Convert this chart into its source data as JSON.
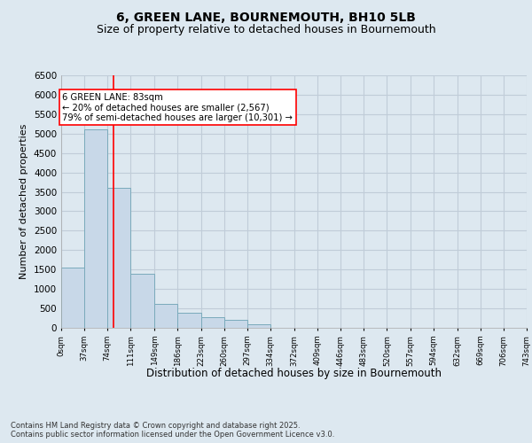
{
  "title1": "6, GREEN LANE, BOURNEMOUTH, BH10 5LB",
  "title2": "Size of property relative to detached houses in Bournemouth",
  "xlabel": "Distribution of detached houses by size in Bournemouth",
  "ylabel": "Number of detached properties",
  "bar_edges": [
    0,
    37,
    74,
    111,
    149,
    186,
    223,
    260,
    297,
    334,
    372,
    409,
    446,
    483,
    520,
    557,
    594,
    632,
    669,
    706,
    743
  ],
  "bar_values": [
    1550,
    5100,
    3600,
    1400,
    620,
    380,
    270,
    200,
    80,
    10,
    0,
    0,
    0,
    0,
    0,
    0,
    0,
    0,
    0,
    0
  ],
  "bar_color": "#c8d8e8",
  "bar_edge_color": "#7aaabb",
  "property_line_x": 83,
  "property_line_color": "red",
  "annotation_text": "6 GREEN LANE: 83sqm\n← 20% of detached houses are smaller (2,567)\n79% of semi-detached houses are larger (10,301) →",
  "annotation_box_color": "white",
  "annotation_box_edge": "red",
  "ylim": [
    0,
    6500
  ],
  "yticks": [
    0,
    500,
    1000,
    1500,
    2000,
    2500,
    3000,
    3500,
    4000,
    4500,
    5000,
    5500,
    6000,
    6500
  ],
  "grid_color": "#c0ccd8",
  "background_color": "#dde8f0",
  "plot_bg_color": "#dde8f0",
  "footer_text": "Contains HM Land Registry data © Crown copyright and database right 2025.\nContains public sector information licensed under the Open Government Licence v3.0.",
  "tick_labels": [
    "0sqm",
    "37sqm",
    "74sqm",
    "111sqm",
    "149sqm",
    "186sqm",
    "223sqm",
    "260sqm",
    "297sqm",
    "334sqm",
    "372sqm",
    "409sqm",
    "446sqm",
    "483sqm",
    "520sqm",
    "557sqm",
    "594sqm",
    "632sqm",
    "669sqm",
    "706sqm",
    "743sqm"
  ],
  "title1_fontsize": 10,
  "title2_fontsize": 9,
  "ylabel_fontsize": 8,
  "xlabel_fontsize": 8.5
}
